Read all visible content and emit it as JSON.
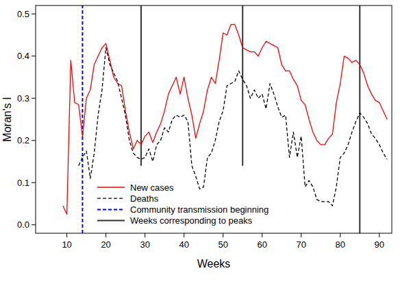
{
  "chart_data": {
    "type": "line",
    "x_label": "Weeks",
    "y_label": "Moran's I",
    "xlim": [
      2,
      93.2
    ],
    "ylim": [
      -0.02,
      0.52
    ],
    "xticks": [
      10,
      20,
      30,
      40,
      50,
      60,
      70,
      80,
      90
    ],
    "yticks": [
      {
        "value": 0,
        "label": "0.0"
      },
      {
        "value": 0.1,
        "label": "0.1"
      },
      {
        "value": 0.2,
        "label": "0.2"
      },
      {
        "value": 0.3,
        "label": "0.3"
      },
      {
        "value": 0.4,
        "label": "0.4"
      },
      {
        "value": 0.5,
        "label": "0.5"
      }
    ],
    "grid": false,
    "legend": "bottom-left",
    "x": [
      9,
      10,
      11,
      12,
      13,
      14,
      15,
      16,
      17,
      18,
      19,
      20,
      21,
      22,
      23,
      24,
      25,
      26,
      27,
      28,
      29,
      30,
      31,
      32,
      33,
      34,
      35,
      36,
      37,
      38,
      39,
      40,
      41,
      42,
      43,
      44,
      45,
      46,
      47,
      48,
      49,
      50,
      51,
      52,
      53,
      54,
      55,
      56,
      57,
      58,
      59,
      60,
      61,
      62,
      63,
      64,
      65,
      66,
      67,
      68,
      69,
      70,
      71,
      72,
      73,
      74,
      75,
      76,
      77,
      78,
      79,
      80,
      81,
      82,
      83,
      84,
      85,
      86,
      87,
      88,
      89,
      90,
      91,
      92
    ],
    "series": [
      {
        "name": "New cases",
        "color": "#ff0000",
        "line_style": "solid",
        "values": [
          0.045,
          0.025,
          0.39,
          0.29,
          0.285,
          0.21,
          0.3,
          0.32,
          0.38,
          0.4,
          0.42,
          0.43,
          0.39,
          0.35,
          0.335,
          0.33,
          0.27,
          0.22,
          0.18,
          0.2,
          0.19,
          0.21,
          0.22,
          0.195,
          0.22,
          0.24,
          0.27,
          0.31,
          0.33,
          0.35,
          0.31,
          0.35,
          0.3,
          0.26,
          0.205,
          0.24,
          0.27,
          0.32,
          0.35,
          0.335,
          0.39,
          0.455,
          0.45,
          0.475,
          0.475,
          0.45,
          0.42,
          0.415,
          0.41,
          0.41,
          0.4,
          0.42,
          0.435,
          0.43,
          0.425,
          0.42,
          0.38,
          0.365,
          0.365,
          0.345,
          0.33,
          0.295,
          0.285,
          0.25,
          0.22,
          0.2,
          0.19,
          0.19,
          0.205,
          0.215,
          0.29,
          0.335,
          0.4,
          0.395,
          0.385,
          0.39,
          0.38,
          0.36,
          0.33,
          0.31,
          0.295,
          0.29,
          0.27,
          0.25
        ]
      },
      {
        "name": "Deaths",
        "color": "#000000",
        "line_style": "dashed",
        "values": [
          null,
          null,
          null,
          null,
          0.14,
          0.16,
          0.175,
          0.11,
          0.17,
          0.26,
          0.32,
          0.42,
          0.38,
          0.36,
          0.34,
          0.3,
          0.26,
          0.2,
          0.17,
          0.16,
          0.155,
          0.16,
          0.18,
          0.15,
          0.19,
          0.2,
          0.23,
          0.22,
          0.25,
          0.26,
          0.255,
          0.26,
          0.245,
          0.14,
          0.115,
          0.085,
          0.09,
          0.16,
          0.17,
          0.2,
          0.245,
          0.27,
          0.33,
          0.335,
          0.34,
          0.365,
          0.345,
          0.33,
          0.3,
          0.32,
          0.3,
          0.31,
          0.275,
          0.335,
          0.31,
          0.28,
          0.255,
          0.26,
          0.16,
          0.22,
          0.16,
          0.21,
          0.09,
          0.105,
          0.09,
          0.06,
          0.055,
          0.055,
          0.055,
          0.045,
          0.09,
          0.16,
          0.17,
          0.19,
          0.22,
          0.245,
          0.265,
          0.255,
          0.24,
          0.215,
          0.205,
          0.19,
          0.17,
          0.155
        ]
      }
    ],
    "annotations": [
      {
        "name": "Community transmission beginning",
        "color": "#0000ff",
        "line_style": "dashed",
        "x": [
          14
        ],
        "ymin": [
          -0.02
        ]
      },
      {
        "name": "Weeks corresponding to peaks",
        "color": "#333333",
        "line_style": "solid",
        "x": [
          29,
          55,
          85
        ],
        "ymin": [
          0.14,
          0.14,
          -0.02
        ]
      }
    ]
  }
}
